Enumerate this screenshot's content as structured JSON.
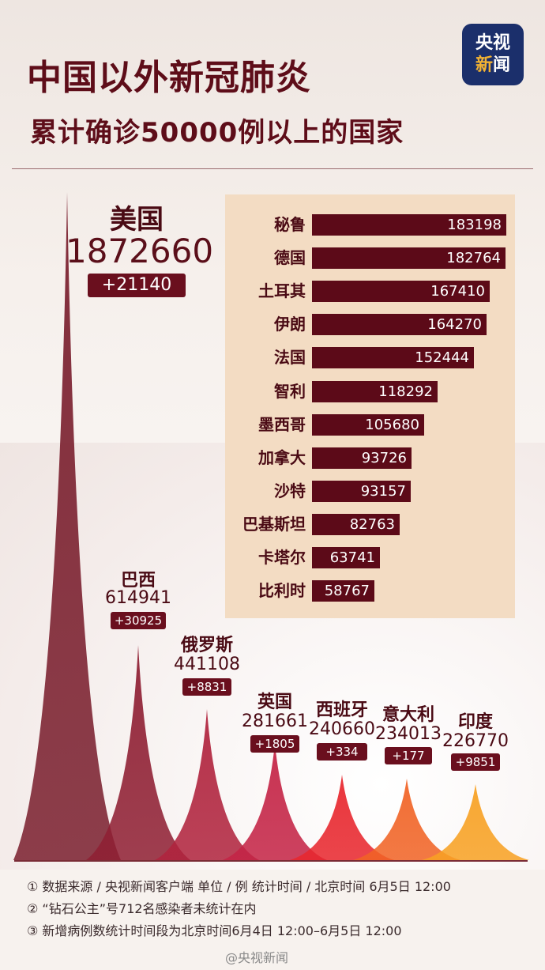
{
  "title_line1": "中国以外新冠肺炎",
  "title_line2": "累计确诊50000例以上的国家",
  "logo": {
    "line1": "央视",
    "line2a": "新",
    "line2b": "闻"
  },
  "chart_data": [
    {
      "type": "bar",
      "categories": [
        "秘鲁",
        "德国",
        "土耳其",
        "伊朗",
        "法国",
        "智利",
        "墨西哥",
        "加拿大",
        "沙特",
        "巴基斯坦",
        "卡塔尔",
        "比利时"
      ],
      "values": [
        183198,
        182764,
        167410,
        164270,
        152444,
        118292,
        105680,
        93726,
        93157,
        82763,
        63741,
        58767
      ]
    },
    {
      "type": "area",
      "categories": [
        "美国",
        "巴西",
        "俄罗斯",
        "英国",
        "西班牙",
        "意大利",
        "印度"
      ],
      "values": [
        1872660,
        614941,
        441108,
        281661,
        240660,
        234013,
        226770
      ],
      "increments": [
        "+21140",
        "+30925",
        "+8831",
        "+1805",
        "+334",
        "+177",
        "+9851"
      ],
      "colors": [
        "#7a1f2e",
        "#8f1f33",
        "#b0233d",
        "#c42345",
        "#e8262d",
        "#f16325",
        "#f8a123"
      ]
    }
  ],
  "notes": [
    "① 数据来源 / 央视新闻客户端   单位 / 例   统计时间 / 北京时间 6月5日 12:00",
    "② “钻石公主”号712名感染者未统计在内",
    "③ 新增病例数统计时间段为北京时间6月4日 12:00–6月5日 12:00"
  ],
  "watermark": "@央视新闻"
}
